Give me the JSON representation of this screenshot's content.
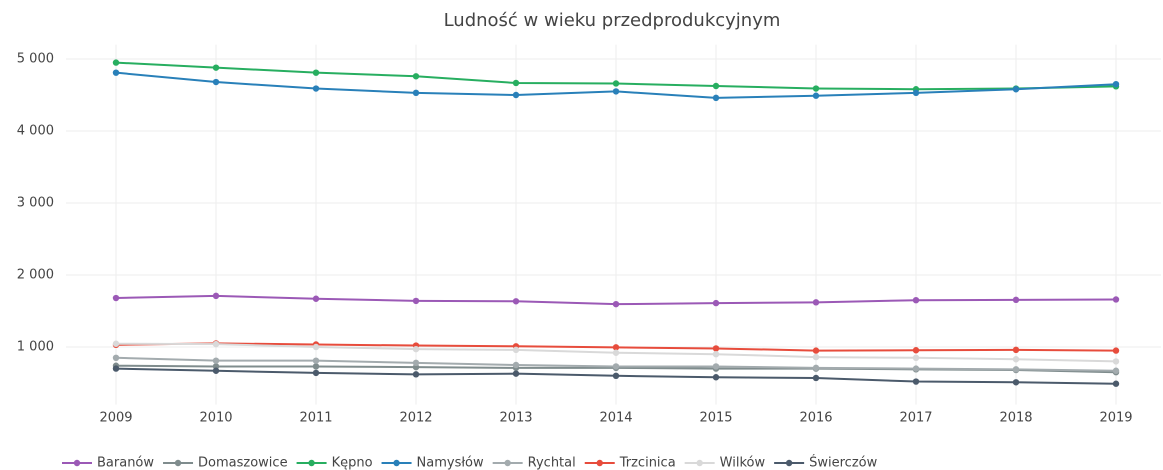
{
  "chart_data": {
    "type": "line",
    "title": "Ludność w wieku przedprodukcyjnym",
    "x": [
      2009,
      2010,
      2011,
      2012,
      2013,
      2014,
      2015,
      2016,
      2017,
      2018,
      2019
    ],
    "xlim": [
      2008.5,
      2019.45
    ],
    "xticks": [
      2009,
      2010,
      2011,
      2012,
      2013,
      2014,
      2015,
      2016,
      2017,
      2018,
      2019
    ],
    "ylim": [
      200,
      5200
    ],
    "yticks": [
      {
        "value": 1000,
        "label": "1 000"
      },
      {
        "value": 2000,
        "label": "2 000"
      },
      {
        "value": 3000,
        "label": "3 000"
      },
      {
        "value": 4000,
        "label": "4 000"
      },
      {
        "value": 5000,
        "label": "5 000"
      }
    ],
    "grid": true,
    "legend": "bottom",
    "series": [
      {
        "name": "Baranów",
        "color": "#9b59b6",
        "values": [
          1680,
          1710,
          1670,
          1640,
          1635,
          1595,
          1610,
          1620,
          1650,
          1655,
          1660
        ]
      },
      {
        "name": "Domaszowice",
        "color": "#7f8c8d",
        "values": [
          740,
          730,
          730,
          720,
          710,
          710,
          700,
          700,
          690,
          680,
          650
        ]
      },
      {
        "name": "Kępno",
        "color": "#27ae60",
        "values": [
          4950,
          4880,
          4810,
          4760,
          4667,
          4660,
          4625,
          4590,
          4580,
          4590,
          4620
        ]
      },
      {
        "name": "Namysłów",
        "color": "#2980b9",
        "values": [
          4810,
          4680,
          4590,
          4530,
          4500,
          4550,
          4460,
          4490,
          4530,
          4580,
          4650
        ]
      },
      {
        "name": "Rychtal",
        "color": "#a3abae",
        "values": [
          850,
          810,
          810,
          780,
          750,
          730,
          730,
          710,
          700,
          690,
          670
        ]
      },
      {
        "name": "Trzcinica",
        "color": "#e74c3c",
        "values": [
          1030,
          1050,
          1035,
          1020,
          1010,
          995,
          980,
          950,
          955,
          960,
          950
        ]
      },
      {
        "name": "Wilków",
        "color": "#d9d9d9",
        "values": [
          1045,
          1040,
          1000,
          970,
          960,
          920,
          900,
          860,
          850,
          830,
          800
        ]
      },
      {
        "name": "Świerczów",
        "color": "#4b5a6b",
        "values": [
          700,
          670,
          640,
          620,
          630,
          600,
          580,
          570,
          520,
          510,
          490
        ]
      }
    ]
  }
}
